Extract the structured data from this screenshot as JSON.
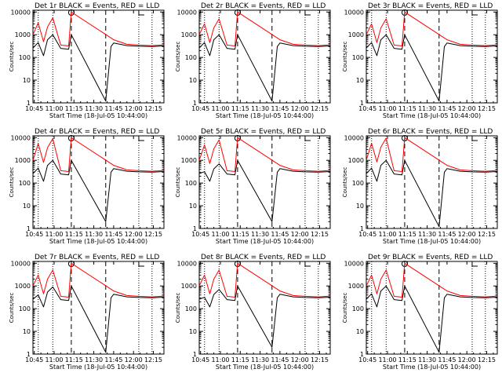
{
  "chart_data": {
    "type": "line",
    "x_tick_labels": [
      "10:45",
      "11:00",
      "11:15",
      "11:30",
      "11:45",
      "12:00",
      "12:15"
    ],
    "x_ticks_min": [
      0,
      15,
      30,
      45,
      60,
      75,
      90
    ],
    "y_tick_labels": [
      "1",
      "10",
      "100",
      "1000",
      "10000"
    ],
    "yscale": "log",
    "ylim": [
      1,
      12000
    ],
    "xlim_min": [
      -1,
      98
    ],
    "ylabel": "Counts/sec",
    "xlabel": "Start Time (18-Jul-05 10:44:00)",
    "vlines_dotted_min": [
      3,
      14,
      79,
      89
    ],
    "vlines_dashed_min": [
      28,
      54
    ],
    "panels": [
      {
        "title": "Det 1r BLACK = Events, RED = LLD",
        "peak_black": 1000,
        "peak_red": 5500,
        "black_gap_bottom": 1.2
      },
      {
        "title": "Det 2r BLACK = Events, RED = LLD",
        "peak_black": 1000,
        "peak_red": 5000,
        "black_gap_bottom": 1.2
      },
      {
        "title": "Det 3r BLACK = Events, RED = LLD",
        "peak_black": 1000,
        "peak_red": 5000,
        "black_gap_bottom": 1.2
      },
      {
        "title": "Det 4r BLACK = Events, RED = LLD",
        "peak_black": 1000,
        "peak_red": 9000,
        "black_gap_bottom": 2.0
      },
      {
        "title": "Det 5r BLACK = Events, RED = LLD",
        "peak_black": 700,
        "peak_red": 8000,
        "black_gap_bottom": 2.0
      },
      {
        "title": "Det 6r BLACK = Events, RED = LLD",
        "peak_black": 1000,
        "peak_red": 9500,
        "black_gap_bottom": 1.2
      },
      {
        "title": "Det 7r BLACK = Events, RED = LLD",
        "peak_black": 900,
        "peak_red": 5000,
        "black_gap_bottom": 1.2
      },
      {
        "title": "Det 8r BLACK = Events, RED = LLD",
        "peak_black": 700,
        "peak_red": 5000,
        "black_gap_bottom": 2.0
      },
      {
        "title": "Det 9r BLACK = Events, RED = LLD",
        "peak_black": 1000,
        "peak_red": 5000,
        "black_gap_bottom": 1.2
      }
    ],
    "series": [
      {
        "color": "#000000",
        "values_min": [
          -1,
          3,
          7,
          10,
          14,
          20,
          26,
          28,
          54,
          58,
          60,
          70,
          79,
          89,
          98
        ],
        "values": [
          260,
          450,
          120,
          600,
          1000,
          250,
          230,
          1000,
          1.2,
          300,
          430,
          330,
          310,
          300,
          320
        ]
      },
      {
        "color": "#ff0000",
        "values_min": [
          -1,
          3,
          7,
          10,
          14,
          20,
          26,
          28,
          60,
          70,
          79,
          89,
          98
        ],
        "values": [
          1000,
          3000,
          450,
          2000,
          5000,
          350,
          320,
          10000,
          600,
          380,
          350,
          330,
          360
        ]
      }
    ]
  }
}
